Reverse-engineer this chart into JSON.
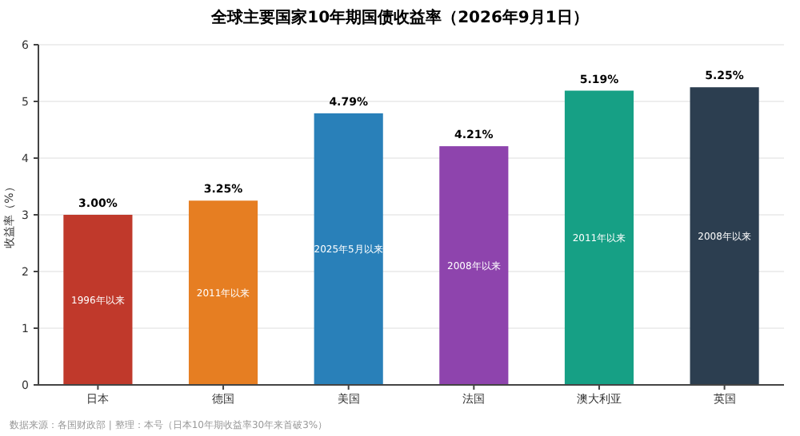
{
  "chart_data": {
    "type": "bar",
    "title": "全球主要国家10年期国债收益率（2026年9月1日）",
    "ylabel": "收益率（%）",
    "categories": [
      "日本",
      "德国",
      "美国",
      "法国",
      "澳大利亚",
      "英国"
    ],
    "values": [
      3.0,
      3.25,
      4.79,
      4.21,
      5.19,
      5.25
    ],
    "colors": [
      "#c0392b",
      "#e67e22",
      "#2980b9",
      "#8e44ad",
      "#16a085",
      "#2c3e50"
    ],
    "value_labels": [
      "3.00%",
      "3.25%",
      "4.79%",
      "4.21%",
      "5.19%",
      "5.25%"
    ],
    "ylim": [
      0,
      6
    ],
    "yticks": [
      0,
      1,
      2,
      3,
      4,
      5,
      6
    ],
    "grid": "y",
    "annotations": [
      "1996年以来",
      "2011年以来",
      "2025年5月以来",
      "2008年以来",
      "2011年以来",
      "2008年以来",
      "数据来源：各国财政部 | 整理：本号（日本10年期收益率30年来首破3%）"
    ]
  }
}
